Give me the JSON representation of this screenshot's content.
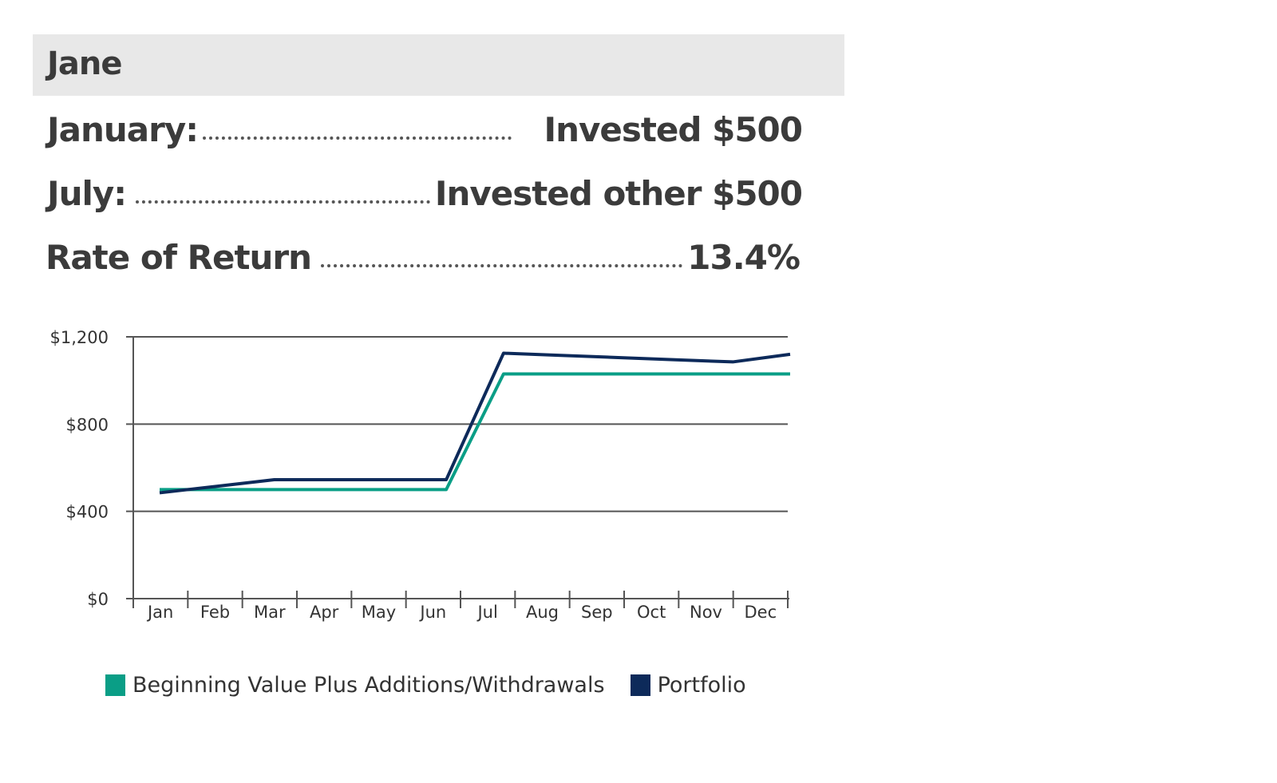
{
  "header": {
    "name": "Jane"
  },
  "rows": [
    {
      "label": "January:",
      "value": "Invested $500"
    },
    {
      "label": "July:",
      "value": "Invested other $500"
    },
    {
      "label": "Rate of Return",
      "value": "13.4%"
    }
  ],
  "colors": {
    "green": "#0a9e86",
    "navy": "#0d2a5a",
    "grid": "#555555"
  },
  "chart_data": {
    "type": "line",
    "categories": [
      "Jan",
      "Feb",
      "Mar",
      "Apr",
      "May",
      "Jun",
      "Jul",
      "Aug",
      "Sep",
      "Oct",
      "Nov",
      "Dec"
    ],
    "y_ticks": [
      "$0",
      "$400",
      "$800",
      "$1,200"
    ],
    "y_tick_values": [
      0,
      400,
      800,
      1200
    ],
    "ylim": [
      0,
      1200
    ],
    "series": [
      {
        "name": "Beginning Value Plus Additions/Withdrawals",
        "color": "#0a9e86",
        "values": [
          500,
          500,
          500,
          500,
          500,
          500,
          1030,
          1030,
          1030,
          1030,
          1030,
          1030
        ]
      },
      {
        "name": "Portfolio",
        "color": "#0d2a5a",
        "values": [
          485,
          515,
          545,
          545,
          545,
          545,
          1125,
          1115,
          1105,
          1095,
          1085,
          1120
        ]
      }
    ],
    "legend_position": "bottom"
  }
}
